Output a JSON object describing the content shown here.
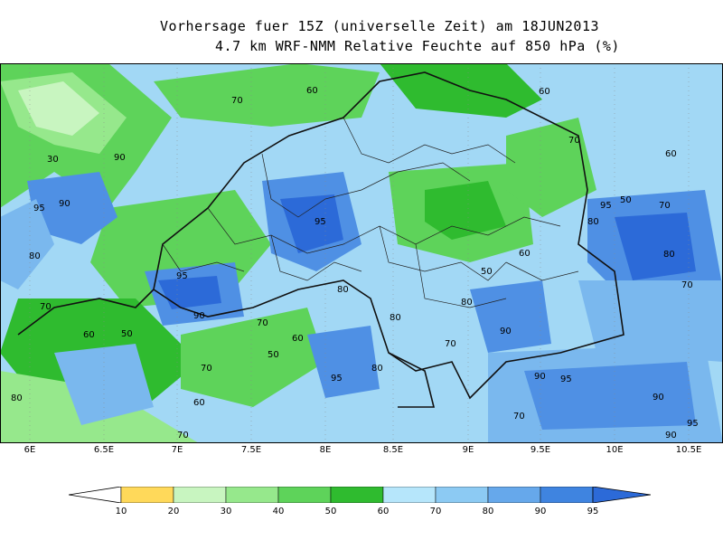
{
  "title_line1": "Vorhersage fuer 15Z (universelle Zeit) am 18JUN2013",
  "title_line2": "4.7 km WRF-NMM Relative Feuchte auf 850 hPa (%)",
  "map": {
    "lon_ticks": [
      "6E",
      "6.5E",
      "7E",
      "7.5E",
      "8E",
      "8.5E",
      "9E",
      "9.5E",
      "10E",
      "10.5E"
    ],
    "contour_labels": [
      "30",
      "70",
      "90",
      "95",
      "90",
      "80",
      "70",
      "60",
      "50",
      "95",
      "80",
      "60",
      "70",
      "80",
      "90",
      "95",
      "70",
      "60",
      "50",
      "80",
      "90",
      "95",
      "70",
      "60",
      "80",
      "70",
      "95",
      "90",
      "80",
      "70",
      "60",
      "50",
      "70",
      "80",
      "95",
      "90",
      "70",
      "60",
      "80",
      "95",
      "90",
      "70",
      "50",
      "60"
    ],
    "shade_colors": {
      "lt_20": "#ffe27a",
      "20_30": "#c8f5c0",
      "30_40": "#96e88c",
      "40_50": "#5ed35a",
      "50_60": "#2fbb2f",
      "60_70": "#c8eefb",
      "70_80": "#a2d8f5",
      "80_90": "#7ab8ee",
      "90_95": "#4f90e4",
      "gt_95": "#2c6ad8"
    }
  },
  "colorbar": {
    "ticks": [
      "10",
      "20",
      "30",
      "40",
      "50",
      "60",
      "70",
      "80",
      "90",
      "95"
    ],
    "colors": [
      "#ffd95a",
      "#c8f5c0",
      "#96e88c",
      "#5ed35a",
      "#2fbb2f",
      "#b6e6fb",
      "#8ccaf3",
      "#66a8eb",
      "#3f84e0",
      "#2c6ad8"
    ]
  }
}
